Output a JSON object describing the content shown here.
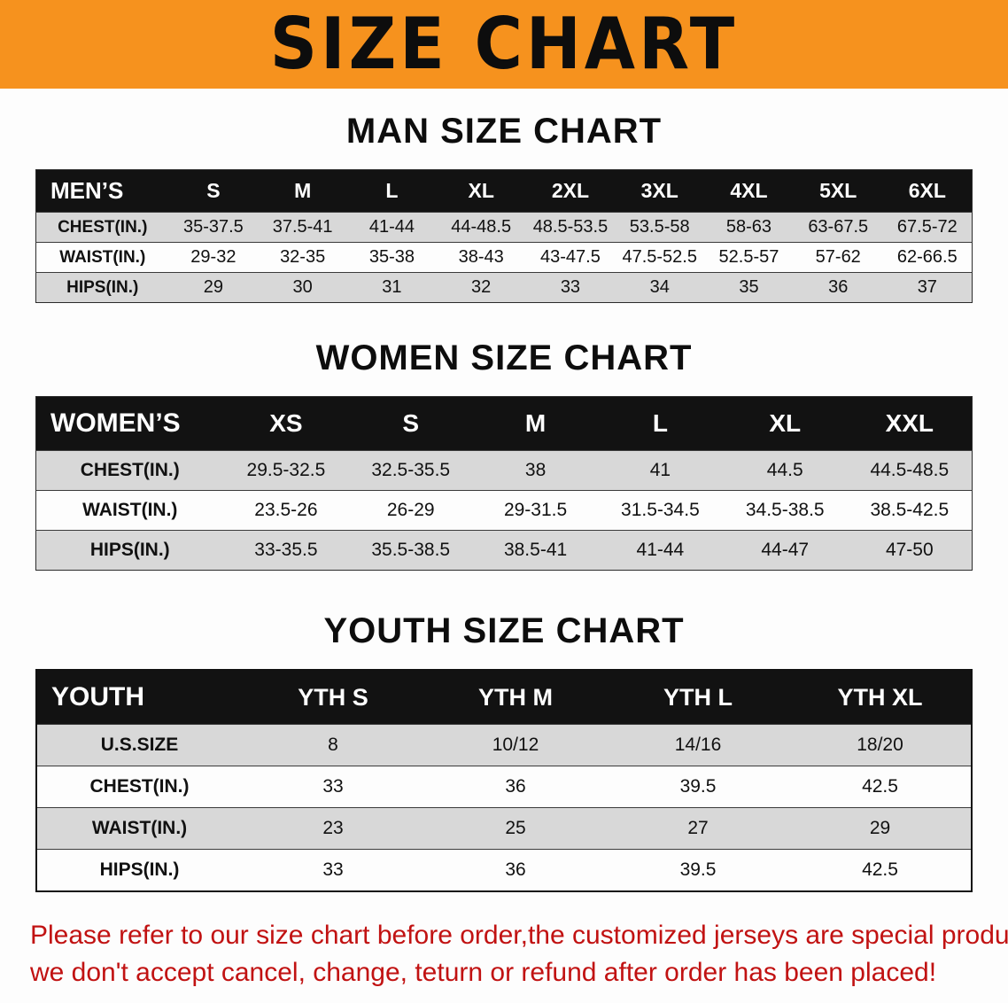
{
  "banner": {
    "title": "SIZE CHART",
    "bg_color": "#F6921E"
  },
  "sections": [
    {
      "heading": "MAN SIZE CHART",
      "table": {
        "header": [
          "MEN’S",
          "S",
          "M",
          "L",
          "XL",
          "2XL",
          "3XL",
          "4XL",
          "5XL",
          "6XL"
        ],
        "rows": [
          [
            "CHEST(IN.)",
            "35-37.5",
            "37.5-41",
            "41-44",
            "44-48.5",
            "48.5-53.5",
            "53.5-58",
            "58-63",
            "63-67.5",
            "67.5-72"
          ],
          [
            "WAIST(IN.)",
            "29-32",
            "32-35",
            "35-38",
            "38-43",
            "43-47.5",
            "47.5-52.5",
            "52.5-57",
            "57-62",
            "62-66.5"
          ],
          [
            "HIPS(IN.)",
            "29",
            "30",
            "31",
            "32",
            "33",
            "34",
            "35",
            "36",
            "37"
          ]
        ]
      }
    },
    {
      "heading": "WOMEN SIZE CHART",
      "table": {
        "header": [
          "WOMEN’S",
          "XS",
          "S",
          "M",
          "L",
          "XL",
          "XXL"
        ],
        "rows": [
          [
            "CHEST(IN.)",
            "29.5-32.5",
            "32.5-35.5",
            "38",
            "41",
            "44.5",
            "44.5-48.5"
          ],
          [
            "WAIST(IN.)",
            "23.5-26",
            "26-29",
            "29-31.5",
            "31.5-34.5",
            "34.5-38.5",
            "38.5-42.5"
          ],
          [
            "HIPS(IN.)",
            "33-35.5",
            "35.5-38.5",
            "38.5-41",
            "41-44",
            "44-47",
            "47-50"
          ]
        ]
      }
    },
    {
      "heading": "YOUTH SIZE CHART",
      "table": {
        "header": [
          "YOUTH",
          "YTH S",
          "YTH M",
          "YTH L",
          "YTH XL"
        ],
        "rows": [
          [
            "U.S.SIZE",
            "8",
            "10/12",
            "14/16",
            "18/20"
          ],
          [
            "CHEST(IN.)",
            "33",
            "36",
            "39.5",
            "42.5"
          ],
          [
            "WAIST(IN.)",
            "23",
            "25",
            "27",
            "29"
          ],
          [
            "HIPS(IN.)",
            "33",
            "36",
            "39.5",
            "42.5"
          ]
        ]
      }
    }
  ],
  "footer": {
    "color": "#C11212",
    "lines": [
      "Please refer to our size chart before order,the customized jerseys are special products,",
      "we don't accept cancel, change, teturn or refund after order has been placed!"
    ]
  }
}
